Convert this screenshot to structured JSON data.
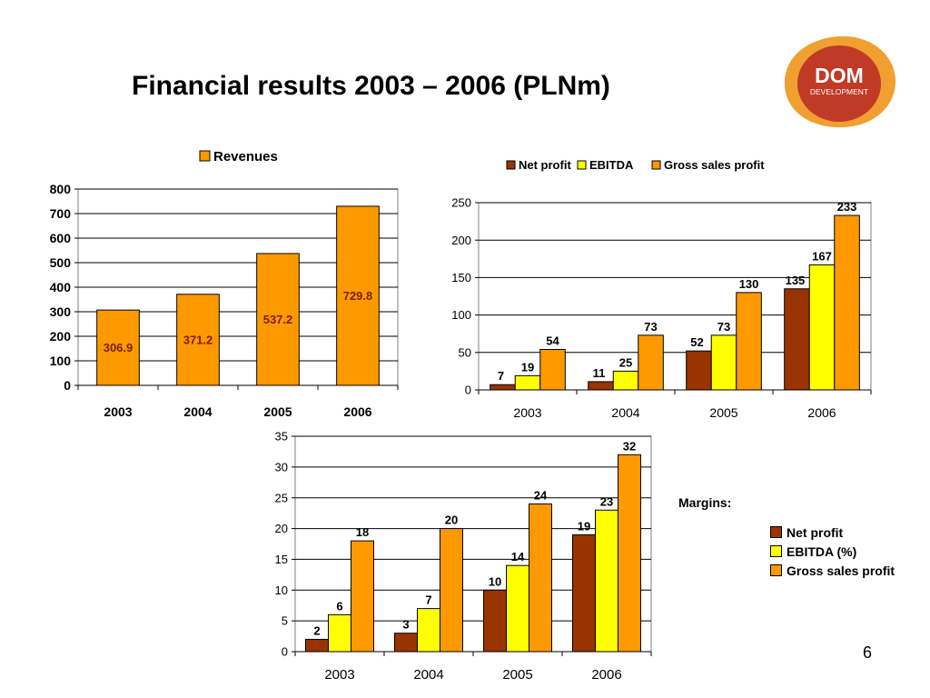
{
  "page": {
    "title": "Financial results 2003 – 2006 (PLNm)",
    "page_number": "6",
    "margins_label": "Margins:"
  },
  "logo": {
    "line1": "DOM",
    "line2": "DEVELOPMENT"
  },
  "colors": {
    "net_profit": "#993300",
    "ebitda": "#FFFF00",
    "gross_sales_profit": "#FF9900",
    "revenues": "#FF9900",
    "logo_orange": "#F0A030",
    "logo_red": "#C03A25"
  },
  "chart_data": [
    {
      "id": "revenues",
      "type": "bar",
      "legend": "Revenues",
      "legend_position": "top",
      "categories": [
        "2003",
        "2004",
        "2005",
        "2006"
      ],
      "series": [
        {
          "name": "Revenues",
          "values": [
            306.9,
            371.2,
            537.2,
            729.8
          ],
          "labels": [
            "306.9",
            "371.2",
            "537.2",
            "729.8"
          ],
          "color": "#FF9900"
        }
      ],
      "ylim": [
        0,
        800
      ],
      "yticks": [
        0,
        100,
        200,
        300,
        400,
        500,
        600,
        700,
        800
      ],
      "grid": true
    },
    {
      "id": "profits",
      "type": "bar",
      "legend_position": "top",
      "categories": [
        "2003",
        "2004",
        "2005",
        "2006"
      ],
      "series": [
        {
          "name": "Net profit",
          "values": [
            7,
            11,
            52,
            135
          ],
          "color": "#993300"
        },
        {
          "name": "EBITDA",
          "values": [
            19,
            25,
            73,
            167
          ],
          "color": "#FFFF00"
        },
        {
          "name": "Gross sales profit",
          "values": [
            54,
            73,
            130,
            233
          ],
          "color": "#FF9900"
        }
      ],
      "ylim": [
        0,
        250
      ],
      "yticks": [
        0,
        50,
        100,
        150,
        200,
        250
      ],
      "grid": true
    },
    {
      "id": "margins",
      "type": "bar",
      "legend_position": "right",
      "categories": [
        "2003",
        "2004",
        "2005",
        "2006"
      ],
      "series": [
        {
          "name": "Net profit",
          "values": [
            2,
            3,
            10,
            19
          ],
          "color": "#993300"
        },
        {
          "name": "EBITDA (%)",
          "values": [
            6,
            7,
            14,
            23
          ],
          "color": "#FFFF00"
        },
        {
          "name": "Gross sales profit",
          "values": [
            18,
            20,
            24,
            32
          ],
          "color": "#FF9900"
        }
      ],
      "ylim": [
        0,
        35
      ],
      "yticks": [
        0,
        5,
        10,
        15,
        20,
        25,
        30,
        35
      ],
      "grid": true
    }
  ]
}
